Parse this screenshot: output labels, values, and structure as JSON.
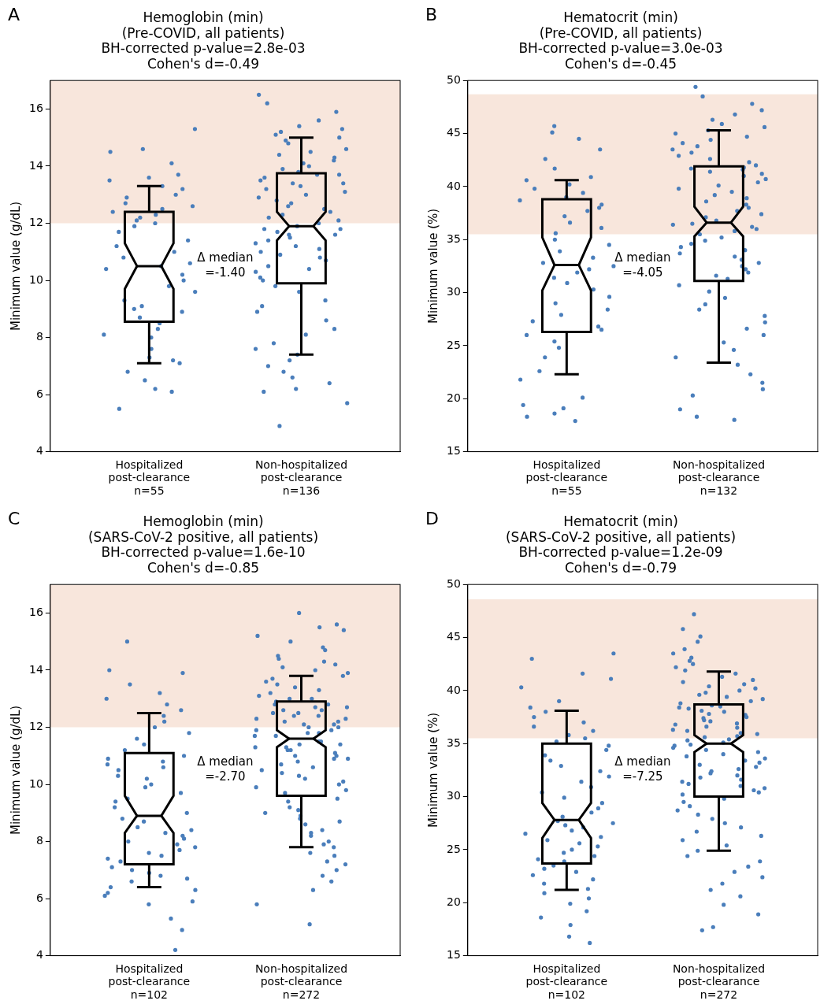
{
  "chart_data": [
    {
      "type": "box",
      "panel": "A",
      "title": [
        "Hemoglobin (min)",
        "(Pre-COVID, all patients)",
        "BH-corrected p-value=2.8e-03",
        "Cohen's d=-0.49"
      ],
      "ylabel": "Minimum value (g/dL)",
      "categories": [
        [
          "Hospitalized",
          "post-clearance",
          "n=55"
        ],
        [
          "Non-hospitalized",
          "post-clearance",
          "n=136"
        ]
      ],
      "ylim": [
        4,
        17
      ],
      "yticks": [
        4,
        6,
        8,
        10,
        12,
        14,
        16
      ],
      "grid": false,
      "color": "#4a7ebb",
      "shaded_range": [
        12,
        17
      ],
      "annotation": [
        "Δ median",
        "=-1.40"
      ],
      "boxes": [
        {
          "whisker_low": 7.1,
          "q1": 8.55,
          "notch_low": 9.7,
          "median": 10.5,
          "notch_high": 11.3,
          "q3": 12.4,
          "whisker_high": 13.3
        },
        {
          "whisker_low": 7.4,
          "q1": 9.9,
          "notch_low": 11.4,
          "median": 11.9,
          "notch_high": 12.4,
          "q3": 13.75,
          "whisker_high": 15.0
        }
      ],
      "values": [
        [
          5.5,
          6.1,
          6.2,
          6.5,
          6.8,
          7.1,
          7.2,
          7.3,
          7.6,
          8.0,
          8.1,
          8.3,
          8.5,
          8.7,
          8.9,
          9.0,
          9.1,
          9.3,
          9.6,
          9.8,
          10.0,
          10.2,
          10.4,
          10.5,
          10.6,
          10.8,
          11.0,
          11.2,
          11.4,
          11.7,
          11.9,
          12.0,
          12.1,
          12.2,
          12.3,
          12.4,
          12.5,
          12.6,
          12.7,
          12.9,
          13.0,
          13.2,
          13.3,
          13.5,
          13.6,
          13.7,
          14.1,
          14.5,
          14.6,
          15.3
        ],
        [
          4.9,
          5.7,
          6.1,
          6.2,
          6.4,
          6.6,
          6.8,
          7.0,
          7.2,
          7.4,
          7.6,
          7.8,
          8.1,
          8.3,
          8.6,
          8.9,
          9.1,
          9.3,
          9.6,
          9.8,
          10.0,
          10.1,
          10.3,
          10.4,
          10.5,
          10.7,
          10.8,
          10.9,
          11.0,
          11.1,
          11.2,
          11.3,
          11.4,
          11.5,
          11.6,
          11.6,
          11.7,
          11.8,
          11.8,
          11.9,
          12.0,
          12.1,
          12.2,
          12.3,
          12.4,
          12.5,
          12.6,
          12.7,
          12.8,
          12.9,
          13.0,
          13.1,
          13.2,
          13.3,
          13.4,
          13.4,
          13.5,
          13.6,
          13.7,
          13.7,
          13.8,
          13.9,
          14.0,
          14.1,
          14.2,
          14.3,
          14.4,
          14.5,
          14.6,
          14.8,
          14.9,
          15.0,
          15.1,
          15.2,
          15.3,
          15.4,
          15.6,
          15.9,
          16.2,
          16.5
        ]
      ]
    },
    {
      "type": "box",
      "panel": "B",
      "title": [
        "Hematocrit (min)",
        "(Pre-COVID, all patients)",
        "BH-corrected p-value=3.0e-03",
        "Cohen's d=-0.45"
      ],
      "ylabel": "Minimum value (%)",
      "categories": [
        [
          "Hospitalized",
          "post-clearance",
          "n=55"
        ],
        [
          "Non-hospitalized",
          "post-clearance",
          "n=132"
        ]
      ],
      "ylim": [
        15,
        50
      ],
      "yticks": [
        15,
        20,
        25,
        30,
        35,
        40,
        45,
        50
      ],
      "grid": false,
      "color": "#4a7ebb",
      "shaded_range": [
        35.5,
        48.7
      ],
      "annotation": [
        "Δ median",
        "=-4.05"
      ],
      "boxes": [
        {
          "whisker_low": 22.3,
          "q1": 26.3,
          "notch_low": 30.2,
          "median": 32.6,
          "notch_high": 35.2,
          "q3": 38.8,
          "whisker_high": 40.6
        },
        {
          "whisker_low": 23.4,
          "q1": 31.1,
          "notch_low": 35.3,
          "median": 36.6,
          "notch_high": 38.1,
          "q3": 41.9,
          "whisker_high": 45.3
        }
      ],
      "values": [
        [
          17.9,
          18.3,
          18.6,
          19.1,
          19.4,
          20.1,
          21.8,
          22.6,
          23.9,
          24.8,
          25.4,
          26.0,
          26.5,
          26.8,
          27.3,
          27.9,
          28.4,
          29.0,
          29.6,
          30.3,
          30.9,
          31.4,
          31.9,
          32.2,
          32.5,
          32.8,
          33.3,
          33.9,
          34.5,
          35.0,
          35.6,
          36.1,
          36.6,
          37.2,
          37.7,
          38.0,
          38.3,
          38.7,
          39.0,
          39.4,
          39.8,
          40.2,
          40.6,
          40.9,
          41.7,
          42.6,
          43.5,
          44.5,
          45.1,
          45.7
        ],
        [
          18.0,
          18.3,
          19.0,
          20.3,
          20.9,
          21.5,
          22.3,
          23.2,
          23.9,
          24.6,
          25.3,
          26.0,
          26.6,
          27.2,
          27.8,
          28.4,
          28.9,
          29.5,
          30.1,
          30.7,
          31.3,
          31.6,
          31.9,
          32.2,
          32.5,
          32.8,
          33.1,
          33.4,
          33.7,
          34.0,
          34.3,
          34.6,
          34.9,
          35.2,
          35.5,
          35.8,
          36.0,
          36.2,
          36.4,
          36.5,
          36.8,
          37.1,
          37.4,
          37.7,
          38.0,
          38.3,
          38.6,
          38.9,
          39.2,
          39.5,
          39.8,
          40.1,
          40.4,
          40.7,
          41.0,
          41.2,
          41.4,
          41.6,
          41.7,
          41.8,
          42.0,
          42.3,
          42.6,
          42.9,
          43.2,
          43.5,
          43.8,
          44.1,
          44.4,
          44.7,
          45.0,
          45.3,
          45.6,
          45.9,
          46.3,
          46.8,
          47.2,
          47.8,
          48.5,
          49.4
        ]
      ]
    },
    {
      "type": "box",
      "panel": "C",
      "title": [
        "Hemoglobin (min)",
        "(SARS-CoV-2 positive, all patients)",
        "BH-corrected p-value=1.6e-10",
        "Cohen's d=-0.85"
      ],
      "ylabel": "Minimum value (g/dL)",
      "categories": [
        [
          "Hospitalized",
          "post-clearance",
          "n=102"
        ],
        [
          "Non-hospitalized",
          "post-clearance",
          "n=272"
        ]
      ],
      "ylim": [
        4,
        17
      ],
      "yticks": [
        4,
        6,
        8,
        10,
        12,
        14,
        16
      ],
      "grid": false,
      "color": "#4a7ebb",
      "shaded_range": [
        12,
        17
      ],
      "annotation": [
        "Δ median",
        "=-2.70"
      ],
      "boxes": [
        {
          "whisker_low": 6.4,
          "q1": 7.2,
          "notch_low": 8.3,
          "median": 8.9,
          "notch_high": 9.6,
          "q3": 11.1,
          "whisker_high": 12.5
        },
        {
          "whisker_low": 7.8,
          "q1": 9.6,
          "notch_low": 11.3,
          "median": 11.6,
          "notch_high": 11.9,
          "q3": 12.9,
          "whisker_high": 13.8
        }
      ],
      "values": [
        [
          4.2,
          4.9,
          5.3,
          5.8,
          5.9,
          6.1,
          6.2,
          6.3,
          6.4,
          6.6,
          6.7,
          6.8,
          6.9,
          7.0,
          7.1,
          7.3,
          7.4,
          7.5,
          7.6,
          7.7,
          7.8,
          7.9,
          8.0,
          8.1,
          8.2,
          8.3,
          8.4,
          8.5,
          8.7,
          8.8,
          9.0,
          9.2,
          9.4,
          9.5,
          9.7,
          9.9,
          10.0,
          10.2,
          10.3,
          10.5,
          10.6,
          10.7,
          10.8,
          10.9,
          11.0,
          11.2,
          11.4,
          11.6,
          11.8,
          12.0,
          12.2,
          12.4,
          12.6,
          12.8,
          13.0,
          13.2,
          13.5,
          13.9,
          14.0,
          15.0
        ],
        [
          5.1,
          5.8,
          6.3,
          6.6,
          6.8,
          7.0,
          7.2,
          7.3,
          7.5,
          7.6,
          7.8,
          7.9,
          8.0,
          8.2,
          8.3,
          8.4,
          8.6,
          8.7,
          8.8,
          8.9,
          9.0,
          9.1,
          9.2,
          9.4,
          9.5,
          9.7,
          9.8,
          9.9,
          10.0,
          10.1,
          10.2,
          10.3,
          10.4,
          10.5,
          10.6,
          10.7,
          10.8,
          10.9,
          10.9,
          11.0,
          11.0,
          11.1,
          11.2,
          11.2,
          11.3,
          11.3,
          11.4,
          11.4,
          11.5,
          11.5,
          11.7,
          11.7,
          11.8,
          11.8,
          11.9,
          11.9,
          12.0,
          12.0,
          12.1,
          12.1,
          12.2,
          12.2,
          12.3,
          12.3,
          12.4,
          12.4,
          12.5,
          12.5,
          12.6,
          12.6,
          12.7,
          12.7,
          12.8,
          12.8,
          12.9,
          13.0,
          13.0,
          13.1,
          13.2,
          13.3,
          13.4,
          13.5,
          13.6,
          13.7,
          13.8,
          13.9,
          14.0,
          14.1,
          14.2,
          14.3,
          14.4,
          14.5,
          14.7,
          14.8,
          15.0,
          15.2,
          15.4,
          15.5,
          15.6,
          16.0
        ]
      ]
    },
    {
      "type": "box",
      "panel": "D",
      "title": [
        "Hematocrit (min)",
        "(SARS-CoV-2 positive, all patients)",
        "BH-corrected p-value=1.2e-09",
        "Cohen's d=-0.79"
      ],
      "ylabel": "Minimum value (%)",
      "categories": [
        [
          "Hospitalized",
          "post-clearance",
          "n=102"
        ],
        [
          "Non-hospitalized",
          "post-clearance",
          "n=272"
        ]
      ],
      "ylim": [
        15,
        50
      ],
      "yticks": [
        15,
        20,
        25,
        30,
        35,
        40,
        45,
        50
      ],
      "grid": false,
      "color": "#4a7ebb",
      "shaded_range": [
        35.5,
        48.6
      ],
      "annotation": [
        "Δ median",
        "=-7.25"
      ],
      "boxes": [
        {
          "whisker_low": 21.2,
          "q1": 23.7,
          "notch_low": 26.1,
          "median": 27.8,
          "notch_high": 29.4,
          "q3": 35.0,
          "whisker_high": 38.1
        },
        {
          "whisker_low": 24.9,
          "q1": 30.0,
          "notch_low": 34.2,
          "median": 35.0,
          "notch_high": 35.8,
          "q3": 38.7,
          "whisker_high": 41.8
        }
      ],
      "values": [
        [
          16.2,
          16.8,
          17.9,
          18.6,
          19.2,
          19.9,
          20.4,
          20.9,
          21.3,
          21.8,
          22.2,
          22.6,
          22.9,
          23.2,
          23.5,
          23.9,
          24.1,
          24.4,
          24.7,
          25.0,
          25.3,
          25.6,
          25.9,
          26.2,
          26.5,
          26.8,
          27.1,
          27.3,
          27.5,
          27.7,
          28.1,
          28.5,
          28.9,
          29.4,
          29.9,
          30.4,
          30.9,
          31.4,
          31.9,
          32.4,
          32.9,
          33.4,
          33.9,
          34.4,
          34.8,
          35.2,
          35.5,
          35.8,
          36.2,
          36.6,
          37.0,
          37.5,
          38.0,
          38.4,
          39.0,
          40.3,
          41.1,
          41.6,
          43.0,
          43.5
        ],
        [
          17.4,
          17.7,
          18.9,
          19.8,
          20.6,
          21.2,
          21.8,
          22.4,
          22.9,
          23.4,
          23.9,
          24.4,
          24.9,
          25.4,
          25.9,
          26.3,
          26.7,
          27.1,
          27.5,
          27.9,
          28.3,
          28.7,
          29.1,
          29.5,
          29.8,
          30.2,
          30.4,
          30.6,
          30.8,
          31.0,
          31.2,
          31.4,
          31.6,
          31.8,
          32.0,
          32.2,
          32.4,
          32.6,
          32.8,
          33.0,
          33.2,
          33.4,
          33.6,
          33.8,
          34.0,
          34.2,
          34.4,
          34.6,
          34.8,
          34.9,
          35.1,
          35.3,
          35.4,
          35.6,
          35.7,
          35.9,
          36.0,
          36.2,
          36.3,
          36.5,
          36.6,
          36.8,
          36.9,
          37.1,
          37.2,
          37.4,
          37.5,
          37.7,
          37.8,
          38.0,
          38.1,
          38.3,
          38.4,
          38.5,
          38.6,
          38.8,
          39.0,
          39.2,
          39.4,
          39.6,
          39.8,
          40.0,
          40.2,
          40.4,
          40.6,
          40.8,
          41.0,
          41.3,
          41.6,
          41.9,
          42.2,
          42.5,
          42.8,
          43.1,
          43.5,
          43.9,
          44.6,
          45.1,
          45.8,
          47.2
        ]
      ]
    }
  ]
}
